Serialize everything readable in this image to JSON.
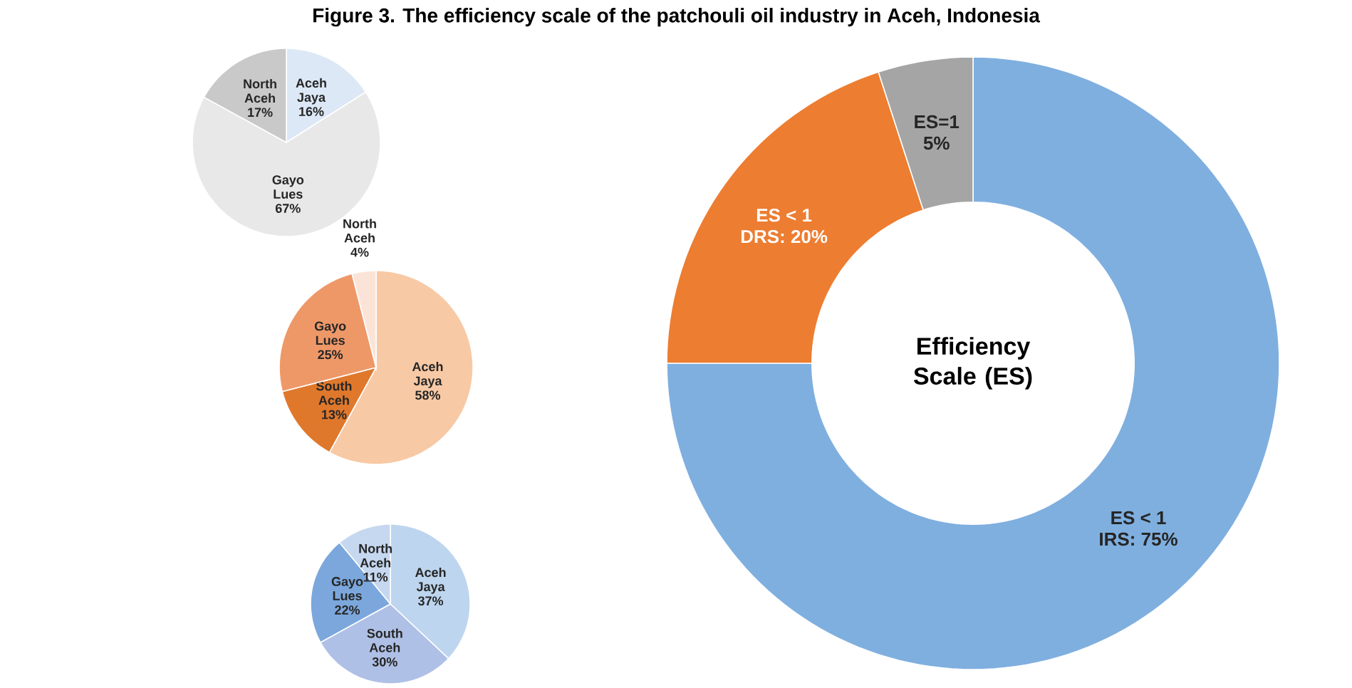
{
  "chart_data": [
    {
      "type": "pie",
      "title": "Figure 3. The efficiency scale of the patchouli oil industry in Aceh, Indonesia",
      "categories": [
        "Aceh Jaya",
        "Gayo Lues",
        "North Aceh"
      ],
      "values": [
        16,
        67,
        17
      ],
      "value_labels": [
        "16%",
        "67%",
        "17%"
      ],
      "colors": [
        "#dce8f6",
        "#e8e8e8",
        "#c9c9c9"
      ]
    },
    {
      "type": "pie",
      "categories": [
        "Aceh Jaya",
        "South Aceh",
        "Gayo Lues",
        "North Aceh"
      ],
      "values": [
        58,
        13,
        25,
        4
      ],
      "value_labels": [
        "58%",
        "13%",
        "25%",
        "4%"
      ],
      "colors": [
        "#f8c9a5",
        "#e0782c",
        "#ee9868",
        "#fbe4d7"
      ]
    },
    {
      "type": "pie",
      "categories": [
        "Aceh Jaya",
        "South Aceh",
        "Gayo Lues",
        "North Aceh"
      ],
      "values": [
        37,
        30,
        22,
        11
      ],
      "value_labels": [
        "37%",
        "30%",
        "22%",
        "11%"
      ],
      "colors": [
        "#bdd5ee",
        "#afc0e6",
        "#7ba7dc",
        "#c6d7f0"
      ]
    },
    {
      "type": "donut",
      "title": "Efficiency Scale (ES)",
      "categories": [
        "ES < 1",
        "ES < 1",
        "ES=1"
      ],
      "values": [
        75,
        20,
        5
      ],
      "value_labels": [
        "IRS: 75%",
        "DRS: 20%",
        "5%"
      ],
      "colors": [
        "#7fafdf",
        "#ed7d31",
        "#a5a5a5"
      ]
    }
  ]
}
